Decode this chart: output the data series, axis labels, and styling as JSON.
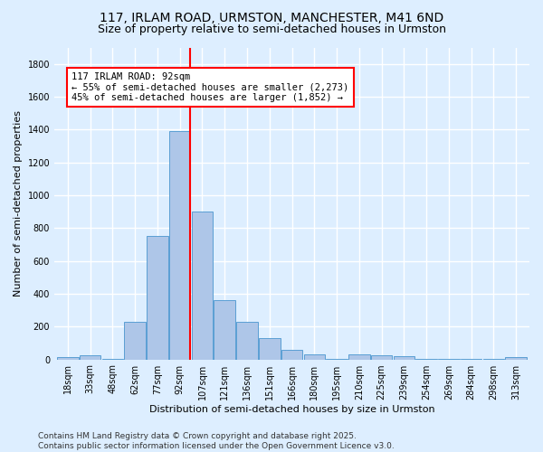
{
  "title_line1": "117, IRLAM ROAD, URMSTON, MANCHESTER, M41 6ND",
  "title_line2": "Size of property relative to semi-detached houses in Urmston",
  "xlabel": "Distribution of semi-detached houses by size in Urmston",
  "ylabel": "Number of semi-detached properties",
  "bin_labels": [
    "18sqm",
    "33sqm",
    "48sqm",
    "62sqm",
    "77sqm",
    "92sqm",
    "107sqm",
    "121sqm",
    "136sqm",
    "151sqm",
    "166sqm",
    "180sqm",
    "195sqm",
    "210sqm",
    "225sqm",
    "239sqm",
    "254sqm",
    "269sqm",
    "284sqm",
    "298sqm",
    "313sqm"
  ],
  "bar_values": [
    15,
    25,
    5,
    230,
    750,
    1390,
    900,
    360,
    230,
    130,
    60,
    30,
    5,
    30,
    25,
    20,
    5,
    5,
    5,
    5,
    15
  ],
  "bar_color": "#aec6e8",
  "bar_edge_color": "#5a9fd4",
  "highlight_bin_idx": 5,
  "annotation_text": "117 IRLAM ROAD: 92sqm\n← 55% of semi-detached houses are smaller (2,273)\n45% of semi-detached houses are larger (1,852) →",
  "annotation_box_color": "white",
  "annotation_box_edge_color": "red",
  "vline_color": "red",
  "ylim": [
    0,
    1900
  ],
  "yticks": [
    0,
    200,
    400,
    600,
    800,
    1000,
    1200,
    1400,
    1600,
    1800
  ],
  "footer_text": "Contains HM Land Registry data © Crown copyright and database right 2025.\nContains public sector information licensed under the Open Government Licence v3.0.",
  "bg_color": "#ddeeff",
  "grid_color": "white",
  "title_fontsize": 10,
  "subtitle_fontsize": 9,
  "axis_label_fontsize": 8,
  "tick_fontsize": 7,
  "annotation_fontsize": 7.5,
  "footer_fontsize": 6.5
}
